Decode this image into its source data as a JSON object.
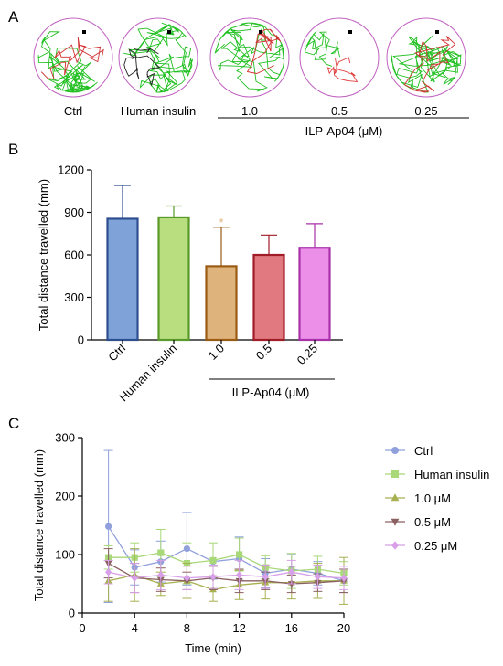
{
  "panel_labels": {
    "a": "A",
    "b": "B",
    "c": "C"
  },
  "panel_a": {
    "arenas": [
      {
        "label": "Ctrl",
        "track_color": "#22c022",
        "accent_color": "#d03030"
      },
      {
        "label": "Human insulin",
        "track_color": "#22c022",
        "accent_color": "#202020"
      },
      {
        "label": "1.0",
        "track_color": "#22c022",
        "accent_color": "#d03030"
      },
      {
        "label": "0.5",
        "track_color": "#22c022",
        "accent_color": "#e04040"
      },
      {
        "label": "0.25",
        "track_color": "#22c022",
        "accent_color": "#d03030"
      }
    ],
    "arena_border_color": "#c060c0",
    "group_label": "ILP-Ap04 (μM)"
  },
  "chart_data": [
    {
      "type": "bar",
      "panel": "B",
      "categories": [
        "Ctrl",
        "Human insulin",
        "1.0",
        "0.5",
        "0.25"
      ],
      "values": [
        855,
        865,
        520,
        600,
        650
      ],
      "errors": [
        235,
        80,
        275,
        140,
        170
      ],
      "significance": [
        "",
        "",
        "*",
        "",
        ""
      ],
      "fill_colors": [
        "#7fa3d8",
        "#b9de80",
        "#dfb37c",
        "#e07a80",
        "#ec8fe8"
      ],
      "edge_colors": [
        "#2e4f8f",
        "#5a9a2a",
        "#9a5b12",
        "#a01c26",
        "#a830a8"
      ],
      "ylabel": "Total distance travelled (mm)",
      "ylim": [
        0,
        1200
      ],
      "yticks": [
        "0",
        "300",
        "600",
        "900",
        "1200"
      ],
      "group_label": "ILP-Ap04 (μM)",
      "legend": "none",
      "grid": false
    },
    {
      "type": "line",
      "panel": "C",
      "x": [
        2,
        4,
        6,
        8,
        10,
        12,
        14,
        16,
        18,
        20
      ],
      "series": [
        {
          "name": "Ctrl",
          "color": "#8fa0dc",
          "marker": "circle",
          "values": [
            148,
            78,
            88,
            110,
            88,
            93,
            68,
            75,
            68,
            55
          ],
          "errors": [
            130,
            30,
            35,
            62,
            30,
            37,
            25,
            25,
            20,
            20
          ]
        },
        {
          "name": "Human insulin",
          "color": "#a8d878",
          "marker": "square",
          "values": [
            95,
            95,
            103,
            85,
            90,
            100,
            78,
            72,
            75,
            68
          ],
          "errors": [
            20,
            25,
            40,
            35,
            30,
            28,
            20,
            30,
            22,
            20
          ]
        },
        {
          "name": "1.0 μM",
          "color": "#a8b050",
          "marker": "triangle-up",
          "values": [
            55,
            65,
            50,
            55,
            40,
            48,
            52,
            52,
            55,
            55
          ],
          "errors": [
            35,
            45,
            20,
            30,
            20,
            25,
            28,
            28,
            30,
            40
          ]
        },
        {
          "name": "0.5 μM",
          "color": "#8a6060",
          "marker": "triangle-down",
          "values": [
            85,
            60,
            57,
            55,
            60,
            55,
            55,
            50,
            52,
            55
          ],
          "errors": [
            25,
            25,
            20,
            15,
            20,
            20,
            15,
            15,
            15,
            20
          ]
        },
        {
          "name": "0.25 μM",
          "color": "#d8a0e8",
          "marker": "diamond",
          "values": [
            70,
            60,
            65,
            60,
            62,
            65,
            62,
            70,
            62,
            60
          ],
          "errors": [
            20,
            25,
            25,
            20,
            20,
            25,
            20,
            20,
            20,
            20
          ]
        }
      ],
      "xlabel": "Time (min)",
      "ylabel": "Total distance travelled (mm)",
      "xlim": [
        0,
        20
      ],
      "ylim": [
        0,
        300
      ],
      "xticks": [
        "0",
        "4",
        "8",
        "12",
        "16",
        "20"
      ],
      "yticks": [
        "0",
        "100",
        "200",
        "300"
      ],
      "legend": "right",
      "grid": false
    }
  ]
}
